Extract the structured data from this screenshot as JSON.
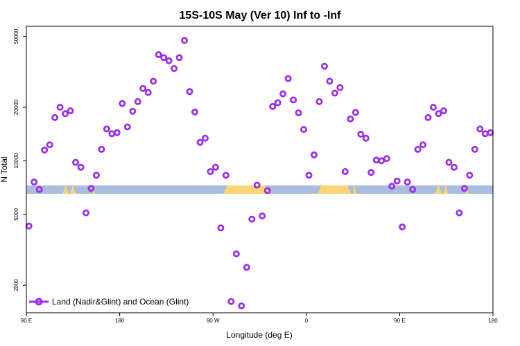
{
  "chart_data": {
    "type": "scatter",
    "title": "15S-10S May (Ver 10)   Inf to -Inf",
    "xlabel": "Longitude (deg E)",
    "ylabel": "N Total",
    "x_scale": "linear",
    "y_scale": "log",
    "xlim": [
      90,
      540
    ],
    "ylim": [
      1400,
      57000
    ],
    "x_ticks": [
      {
        "value": 90,
        "label": "90 E"
      },
      {
        "value": 180,
        "label": "180"
      },
      {
        "value": 270,
        "label": "90 W"
      },
      {
        "value": 360,
        "label": "0"
      },
      {
        "value": 450,
        "label": "90 E"
      },
      {
        "value": 540,
        "label": "180"
      }
    ],
    "y_ticks": [
      {
        "value": 2000,
        "label": "2000"
      },
      {
        "value": 5000,
        "label": "5000"
      },
      {
        "value": 10000,
        "label": "10000"
      },
      {
        "value": 20000,
        "label": "20000"
      },
      {
        "value": 50000,
        "label": "50000"
      }
    ],
    "legend": {
      "position": "bottom-left"
    },
    "colors": {
      "series": "#9b30e8",
      "ocean": "#a8bedc",
      "land": "#fcd574"
    },
    "series": [
      {
        "name": "Land (Nadir&Glint) and Ocean (Glint)",
        "marker": "open-circle",
        "points": [
          {
            "x": 92.5,
            "y": 4300
          },
          {
            "x": 97.5,
            "y": 7600
          },
          {
            "x": 102.5,
            "y": 6900
          },
          {
            "x": 107.5,
            "y": 11500
          },
          {
            "x": 112.5,
            "y": 12300
          },
          {
            "x": 117.5,
            "y": 17500
          },
          {
            "x": 122.5,
            "y": 20000
          },
          {
            "x": 127.5,
            "y": 18400
          },
          {
            "x": 132.5,
            "y": 19100
          },
          {
            "x": 137.5,
            "y": 9800
          },
          {
            "x": 142.5,
            "y": 9200
          },
          {
            "x": 147.5,
            "y": 5100
          },
          {
            "x": 152.5,
            "y": 7000
          },
          {
            "x": 157.5,
            "y": 8300
          },
          {
            "x": 162.5,
            "y": 11600
          },
          {
            "x": 167.5,
            "y": 15100
          },
          {
            "x": 172.5,
            "y": 14200
          },
          {
            "x": 177.5,
            "y": 14400
          },
          {
            "x": 182.5,
            "y": 21000
          },
          {
            "x": 187.5,
            "y": 15500
          },
          {
            "x": 192.5,
            "y": 19000
          },
          {
            "x": 197.5,
            "y": 21500
          },
          {
            "x": 202.5,
            "y": 25500
          },
          {
            "x": 207.5,
            "y": 24200
          },
          {
            "x": 212.5,
            "y": 28000
          },
          {
            "x": 217.5,
            "y": 39500
          },
          {
            "x": 222.5,
            "y": 38000
          },
          {
            "x": 227.5,
            "y": 36500
          },
          {
            "x": 232.5,
            "y": 33000
          },
          {
            "x": 237.5,
            "y": 38000
          },
          {
            "x": 242.5,
            "y": 47500
          },
          {
            "x": 247.5,
            "y": 24500
          },
          {
            "x": 252.5,
            "y": 18800
          },
          {
            "x": 257.5,
            "y": 12700
          },
          {
            "x": 262.5,
            "y": 13400
          },
          {
            "x": 267.5,
            "y": 8700
          },
          {
            "x": 272.5,
            "y": 9200
          },
          {
            "x": 277.5,
            "y": 4200
          },
          {
            "x": 282.5,
            "y": 8300
          },
          {
            "x": 287.5,
            "y": 1620
          },
          {
            "x": 292.5,
            "y": 3000
          },
          {
            "x": 297.5,
            "y": 1530
          },
          {
            "x": 302.5,
            "y": 2520
          },
          {
            "x": 307.5,
            "y": 4700
          },
          {
            "x": 312.5,
            "y": 7300
          },
          {
            "x": 317.5,
            "y": 4900
          },
          {
            "x": 322.5,
            "y": 6800
          },
          {
            "x": 327.5,
            "y": 20200
          },
          {
            "x": 332.5,
            "y": 21200
          },
          {
            "x": 337.5,
            "y": 23800
          },
          {
            "x": 342.5,
            "y": 29000
          },
          {
            "x": 347.5,
            "y": 22000
          },
          {
            "x": 352.5,
            "y": 18600
          },
          {
            "x": 357.5,
            "y": 15000
          },
          {
            "x": 362.5,
            "y": 8300
          },
          {
            "x": 367.5,
            "y": 10800
          },
          {
            "x": 372.5,
            "y": 21500
          },
          {
            "x": 377.5,
            "y": 34000
          },
          {
            "x": 382.5,
            "y": 28000
          },
          {
            "x": 387.5,
            "y": 24000
          },
          {
            "x": 392.5,
            "y": 25800
          },
          {
            "x": 397.5,
            "y": 8700
          },
          {
            "x": 402.5,
            "y": 17200
          },
          {
            "x": 407.5,
            "y": 18700
          },
          {
            "x": 412.5,
            "y": 14100
          },
          {
            "x": 417.5,
            "y": 13400
          },
          {
            "x": 422.5,
            "y": 8600
          },
          {
            "x": 427.5,
            "y": 10100
          },
          {
            "x": 432.5,
            "y": 10000
          },
          {
            "x": 437.5,
            "y": 10300
          },
          {
            "x": 442.5,
            "y": 7200
          },
          {
            "x": 447.5,
            "y": 7700
          },
          {
            "x": 452.5,
            "y": 4250
          },
          {
            "x": 457.5,
            "y": 7600
          },
          {
            "x": 462.5,
            "y": 6900
          },
          {
            "x": 467.5,
            "y": 11600
          },
          {
            "x": 472.5,
            "y": 12300
          },
          {
            "x": 477.5,
            "y": 17500
          },
          {
            "x": 482.5,
            "y": 20000
          },
          {
            "x": 487.5,
            "y": 18400
          },
          {
            "x": 492.5,
            "y": 19100
          },
          {
            "x": 497.5,
            "y": 9800
          },
          {
            "x": 502.5,
            "y": 9200
          },
          {
            "x": 507.5,
            "y": 5100
          },
          {
            "x": 512.5,
            "y": 7000
          },
          {
            "x": 517.5,
            "y": 8300
          },
          {
            "x": 522.5,
            "y": 11600
          },
          {
            "x": 527.5,
            "y": 15100
          },
          {
            "x": 532.5,
            "y": 14200
          },
          {
            "x": 537.5,
            "y": 14400
          }
        ]
      }
    ],
    "land_ocean_strip": {
      "land_segments": [
        [
          282,
          322
        ],
        [
          373,
          401
        ]
      ],
      "land_bumps": [
        [
          125,
          131
        ],
        [
          132,
          138
        ],
        [
          154,
          156
        ],
        [
          405,
          408
        ],
        [
          484,
          491
        ],
        [
          492,
          497
        ],
        [
          514,
          516
        ]
      ]
    }
  }
}
